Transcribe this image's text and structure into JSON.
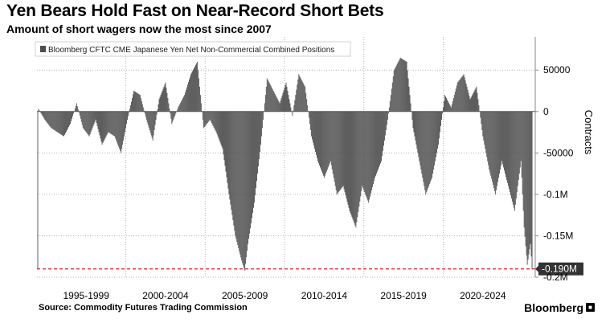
{
  "title": "Yen Bears Hold Fast on Near-Record Short Bets",
  "subtitle": "Amount of short wagers now the most since 2007",
  "source": "Source: Commodity Futures Trading Commission",
  "brand": "Bloomberg",
  "brand_icon": "bloomberg-terminal-icon",
  "chart_data": {
    "type": "area",
    "legend": {
      "label": "Bloomberg CFTC CME Japanese Yen Net Non-Commercial Combined Positions",
      "placement": "top-left"
    },
    "ylabel": "Contracts",
    "ylim": [
      -200000,
      90000
    ],
    "y_ticks": [
      {
        "value": 50000,
        "label": "50000"
      },
      {
        "value": 0,
        "label": "0"
      },
      {
        "value": -50000,
        "label": "-50000"
      },
      {
        "value": -100000,
        "label": "-0.1M"
      },
      {
        "value": -150000,
        "label": "-0.15M"
      },
      {
        "value": -200000,
        "label": "-0.2M"
      }
    ],
    "x_range": [
      1993.9,
      2025.3
    ],
    "x_tick_lines": [
      1999.5,
      2004.5,
      2009.5,
      2014.5,
      2019.5
    ],
    "x_ticks": [
      {
        "center": 1997.0,
        "label": "1995-1999"
      },
      {
        "center": 2002.0,
        "label": "2000-2004"
      },
      {
        "center": 2007.0,
        "label": "2005-2009"
      },
      {
        "center": 2012.0,
        "label": "2010-2014"
      },
      {
        "center": 2017.0,
        "label": "2015-2019"
      },
      {
        "center": 2022.0,
        "label": "2020-2024"
      }
    ],
    "grid": "dotted",
    "reference_line": {
      "value": -190000,
      "label": "-0.190M",
      "color": "#e0303a"
    },
    "series_color": "#4d4d4d",
    "x": [
      1994.0,
      1994.4,
      1994.8,
      1995.2,
      1995.6,
      1996.0,
      1996.4,
      1996.8,
      1997.2,
      1997.6,
      1998.0,
      1998.4,
      1998.8,
      1999.2,
      1999.6,
      2000.0,
      2000.4,
      2000.8,
      2001.2,
      2001.6,
      2002.0,
      2002.4,
      2002.8,
      2003.2,
      2003.6,
      2004.0,
      2004.4,
      2004.8,
      2005.2,
      2005.6,
      2006.0,
      2006.4,
      2006.8,
      2007.0,
      2007.2,
      2007.6,
      2008.0,
      2008.4,
      2008.8,
      2009.2,
      2009.6,
      2010.0,
      2010.4,
      2010.8,
      2011.2,
      2011.6,
      2012.0,
      2012.4,
      2012.8,
      2013.2,
      2013.6,
      2014.0,
      2014.4,
      2014.8,
      2015.2,
      2015.6,
      2016.0,
      2016.4,
      2016.8,
      2017.2,
      2017.6,
      2018.0,
      2018.4,
      2018.8,
      2019.2,
      2019.6,
      2020.0,
      2020.4,
      2020.8,
      2021.2,
      2021.6,
      2022.0,
      2022.4,
      2022.8,
      2023.2,
      2023.6,
      2024.0,
      2024.4,
      2024.6,
      2024.8,
      2025.0,
      2025.1
    ],
    "y": [
      3000,
      -10000,
      -20000,
      -25000,
      -30000,
      -15000,
      10000,
      -20000,
      -30000,
      -10000,
      -40000,
      -25000,
      -30000,
      -50000,
      -10000,
      25000,
      20000,
      -10000,
      -35000,
      15000,
      35000,
      -15000,
      5000,
      20000,
      45000,
      60000,
      -20000,
      -10000,
      -25000,
      -45000,
      -100000,
      -150000,
      -180000,
      -192000,
      -160000,
      -110000,
      -40000,
      40000,
      25000,
      10000,
      35000,
      -5000,
      45000,
      30000,
      -30000,
      -60000,
      -80000,
      -60000,
      -100000,
      -90000,
      -120000,
      -140000,
      -90000,
      -110000,
      -80000,
      -60000,
      -10000,
      50000,
      65000,
      60000,
      -20000,
      -60000,
      -100000,
      -80000,
      -40000,
      20000,
      5000,
      35000,
      45000,
      15000,
      30000,
      -30000,
      -70000,
      -100000,
      -60000,
      -90000,
      -120000,
      -60000,
      -140000,
      -185000,
      -160000,
      -190000
    ]
  }
}
